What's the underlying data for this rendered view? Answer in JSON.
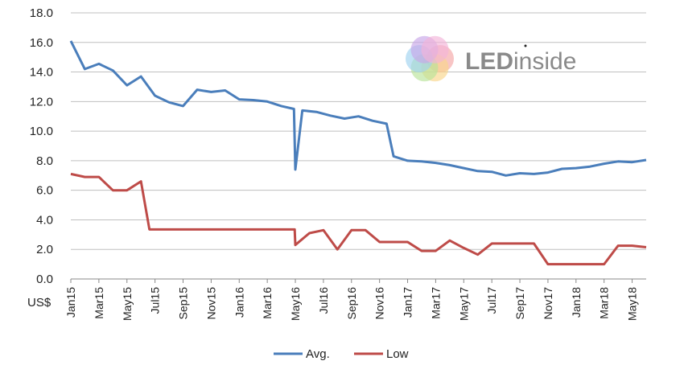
{
  "chart_data": {
    "type": "line",
    "title": "",
    "xlabel": "",
    "ylabel": "",
    "y_unit": "US$",
    "ylim": [
      0,
      18
    ],
    "y_ticks": [
      "0.0",
      "2.0",
      "4.0",
      "6.0",
      "8.0",
      "10.0",
      "12.0",
      "14.0",
      "16.0",
      "18.0"
    ],
    "grid": "horizontal",
    "legend_position": "bottom",
    "x": [
      "Jan15",
      "Feb15",
      "Mar15",
      "Apr15",
      "May15",
      "Jun15",
      "Jul15",
      "Aug15",
      "Sep15",
      "Oct15",
      "Nov15",
      "Dec15",
      "Jan16",
      "Feb16",
      "Mar16",
      "Apr16",
      "May16",
      "Jun16",
      "Jul16",
      "Aug16",
      "Sep16",
      "Oct16",
      "Nov16",
      "Dec16",
      "Jan17",
      "Feb17",
      "Mar17",
      "Apr17",
      "May17",
      "Jun17",
      "Jul17",
      "Aug17",
      "Sep17",
      "Oct17",
      "Nov17",
      "Dec17",
      "Jan18",
      "Feb18",
      "Mar18",
      "Apr18",
      "May18",
      "Jun18"
    ],
    "x_tick_labels": [
      "Jan15",
      "Mar15",
      "May15",
      "Jul15",
      "Sep15",
      "Nov15",
      "Jan16",
      "Mar16",
      "May16",
      "Jul16",
      "Sep16",
      "Nov16",
      "Jan17",
      "Mar17",
      "May17",
      "Jul17",
      "Sep17",
      "Nov17",
      "Jan18",
      "Mar18",
      "May18"
    ],
    "x_tick_index": [
      0,
      2,
      4,
      6,
      8,
      10,
      12,
      14,
      16,
      18,
      20,
      22,
      24,
      26,
      28,
      30,
      32,
      34,
      36,
      38,
      40
    ],
    "series": [
      {
        "name": "Avg.",
        "color": "#4a7ebb",
        "points": [
          {
            "x": 0,
            "y": 16.1
          },
          {
            "x": 1,
            "y": 14.2
          },
          {
            "x": 2,
            "y": 14.55
          },
          {
            "x": 3,
            "y": 14.1
          },
          {
            "x": 4,
            "y": 13.1
          },
          {
            "x": 5,
            "y": 13.7
          },
          {
            "x": 6,
            "y": 12.4
          },
          {
            "x": 7,
            "y": 11.95
          },
          {
            "x": 8,
            "y": 11.7
          },
          {
            "x": 9,
            "y": 12.8
          },
          {
            "x": 10,
            "y": 12.65
          },
          {
            "x": 11,
            "y": 12.75
          },
          {
            "x": 12,
            "y": 12.15
          },
          {
            "x": 13,
            "y": 12.1
          },
          {
            "x": 14,
            "y": 12.0
          },
          {
            "x": 15,
            "y": 11.7
          },
          {
            "x": 15.9,
            "y": 11.5
          },
          {
            "x": 16,
            "y": 7.4
          },
          {
            "x": 16.5,
            "y": 11.4
          },
          {
            "x": 17.5,
            "y": 11.3
          },
          {
            "x": 18.5,
            "y": 11.05
          },
          {
            "x": 19.5,
            "y": 10.85
          },
          {
            "x": 20.5,
            "y": 11.0
          },
          {
            "x": 21.5,
            "y": 10.7
          },
          {
            "x": 22.5,
            "y": 10.5
          },
          {
            "x": 23,
            "y": 8.3
          },
          {
            "x": 24,
            "y": 8.0
          },
          {
            "x": 25,
            "y": 7.95
          },
          {
            "x": 26,
            "y": 7.85
          },
          {
            "x": 27,
            "y": 7.7
          },
          {
            "x": 28,
            "y": 7.5
          },
          {
            "x": 29,
            "y": 7.3
          },
          {
            "x": 30,
            "y": 7.25
          },
          {
            "x": 31,
            "y": 7.0
          },
          {
            "x": 32,
            "y": 7.15
          },
          {
            "x": 33,
            "y": 7.1
          },
          {
            "x": 34,
            "y": 7.2
          },
          {
            "x": 35,
            "y": 7.45
          },
          {
            "x": 36,
            "y": 7.5
          },
          {
            "x": 37,
            "y": 7.6
          },
          {
            "x": 38,
            "y": 7.8
          },
          {
            "x": 39,
            "y": 7.95
          },
          {
            "x": 40,
            "y": 7.9
          },
          {
            "x": 41,
            "y": 8.05
          }
        ]
      },
      {
        "name": "Low",
        "color": "#be4b48",
        "points": [
          {
            "x": 0,
            "y": 7.1
          },
          {
            "x": 1,
            "y": 6.9
          },
          {
            "x": 2,
            "y": 6.9
          },
          {
            "x": 3,
            "y": 6.0
          },
          {
            "x": 4,
            "y": 6.0
          },
          {
            "x": 5,
            "y": 6.6
          },
          {
            "x": 5.6,
            "y": 3.35
          },
          {
            "x": 6,
            "y": 3.35
          },
          {
            "x": 7,
            "y": 3.35
          },
          {
            "x": 8,
            "y": 3.35
          },
          {
            "x": 9,
            "y": 3.35
          },
          {
            "x": 10,
            "y": 3.35
          },
          {
            "x": 11,
            "y": 3.35
          },
          {
            "x": 12,
            "y": 3.35
          },
          {
            "x": 13,
            "y": 3.35
          },
          {
            "x": 14,
            "y": 3.35
          },
          {
            "x": 15,
            "y": 3.35
          },
          {
            "x": 15.95,
            "y": 3.35
          },
          {
            "x": 16,
            "y": 2.3
          },
          {
            "x": 17,
            "y": 3.1
          },
          {
            "x": 18,
            "y": 3.3
          },
          {
            "x": 19,
            "y": 2.0
          },
          {
            "x": 20,
            "y": 3.3
          },
          {
            "x": 21,
            "y": 3.3
          },
          {
            "x": 22,
            "y": 2.5
          },
          {
            "x": 23,
            "y": 2.5
          },
          {
            "x": 24,
            "y": 2.5
          },
          {
            "x": 25,
            "y": 1.9
          },
          {
            "x": 26,
            "y": 1.9
          },
          {
            "x": 27,
            "y": 2.6
          },
          {
            "x": 28,
            "y": 2.1
          },
          {
            "x": 29,
            "y": 1.65
          },
          {
            "x": 30,
            "y": 2.4
          },
          {
            "x": 31,
            "y": 2.4
          },
          {
            "x": 32,
            "y": 2.4
          },
          {
            "x": 33,
            "y": 2.4
          },
          {
            "x": 34,
            "y": 1.0
          },
          {
            "x": 35,
            "y": 1.0
          },
          {
            "x": 36,
            "y": 1.0
          },
          {
            "x": 37,
            "y": 1.0
          },
          {
            "x": 38,
            "y": 1.0
          },
          {
            "x": 39,
            "y": 2.25
          },
          {
            "x": 40,
            "y": 2.25
          },
          {
            "x": 41,
            "y": 2.15
          }
        ]
      }
    ]
  },
  "logo": {
    "text_bold": "LED",
    "text_light": "inside",
    "petal_colors": [
      "#f4a6a6",
      "#f9d58a",
      "#b9e39a",
      "#9fd3f0",
      "#c7a6e8",
      "#f3b3d9"
    ]
  }
}
